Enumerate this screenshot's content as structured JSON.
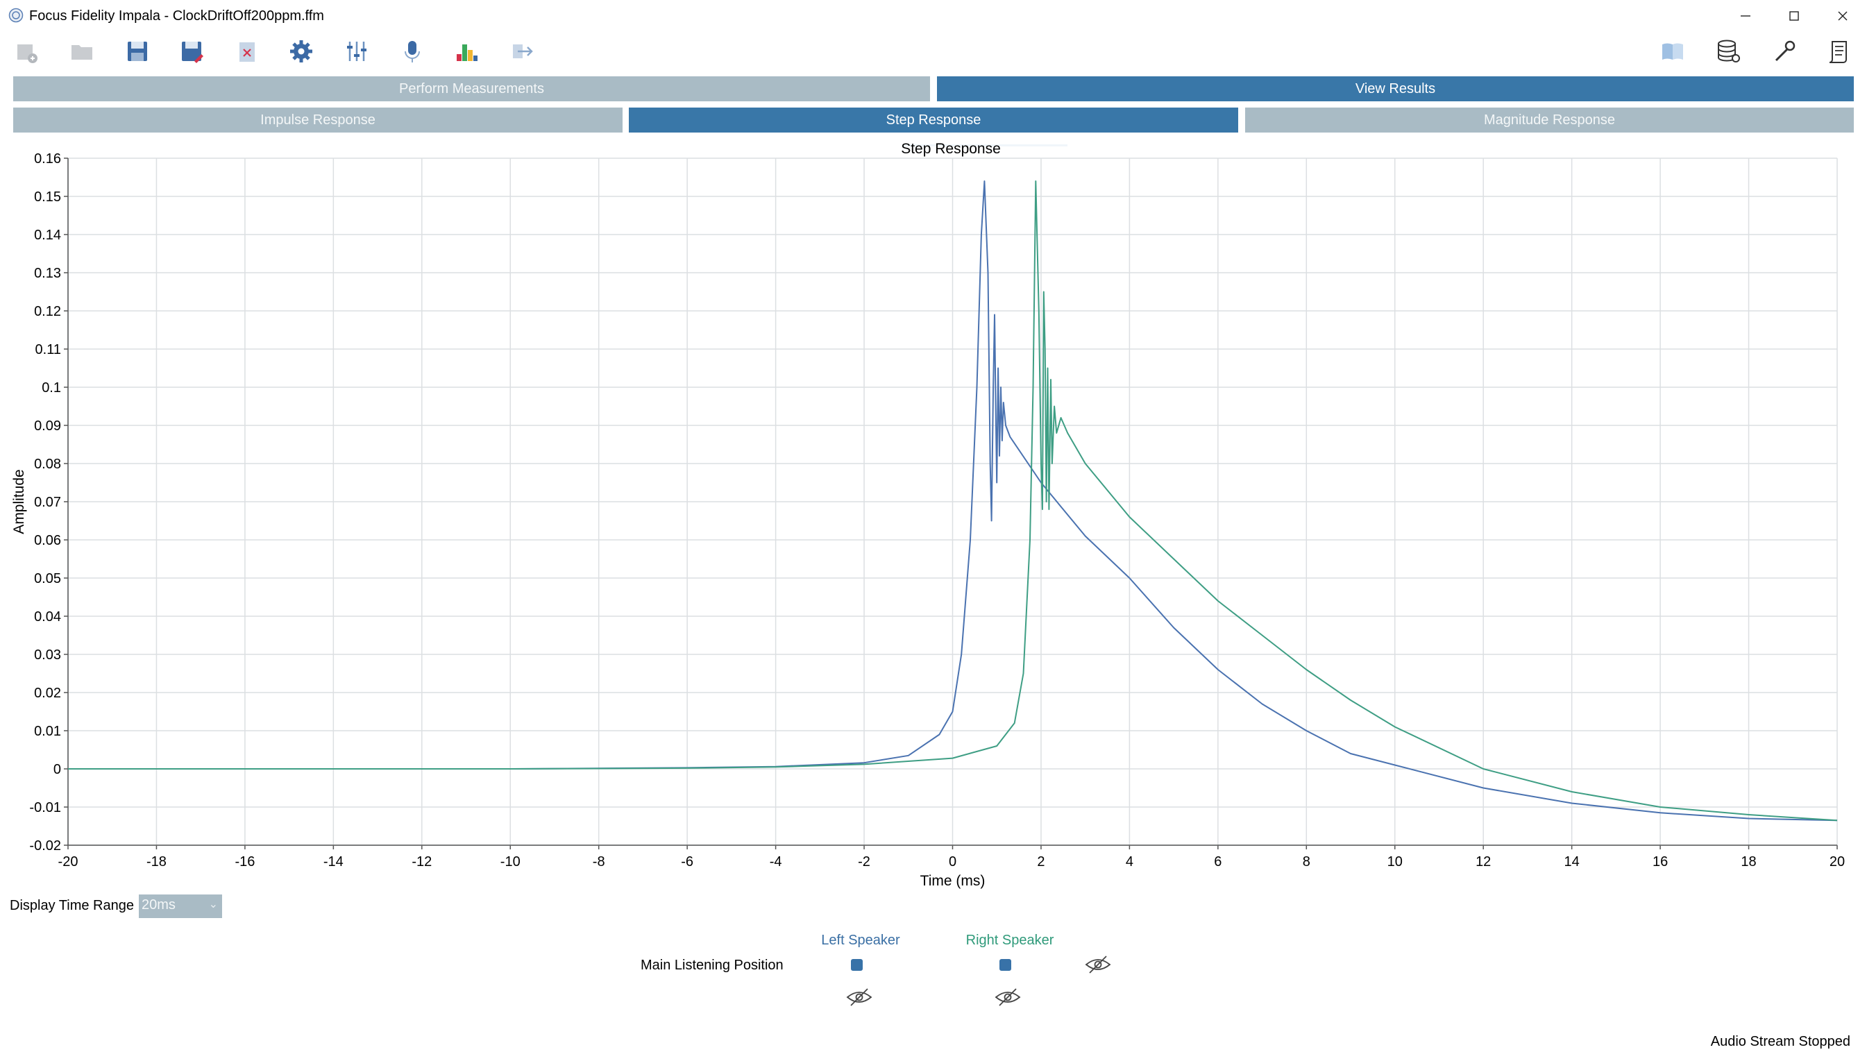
{
  "window": {
    "title": "Focus Fidelity Impala - ClockDriftOff200ppm.ffm",
    "minimize": "—",
    "maximize": "☐",
    "close": "✕"
  },
  "toolbar": {
    "icons": [
      "new-measurement-icon",
      "open-folder-icon",
      "save-icon",
      "save-as-icon",
      "close-file-icon",
      "settings-icon",
      "sliders-icon",
      "microphone-icon",
      "chart-bars-icon",
      "export-icon",
      "manual-icon",
      "database-icon",
      "tools-icon",
      "report-icon"
    ]
  },
  "tabs": {
    "main": [
      {
        "label": "Perform Measurements",
        "active": false
      },
      {
        "label": "View Results",
        "active": true
      }
    ],
    "results": [
      {
        "label": "Impulse Response",
        "active": false
      },
      {
        "label": "Step Response",
        "active": true
      },
      {
        "label": "Magnitude Response",
        "active": false
      }
    ]
  },
  "controls": {
    "display_time_range_label": "Display Time Range",
    "display_time_range_value": "20ms"
  },
  "legend": {
    "left_speaker": "Left Speaker",
    "right_speaker": "Right Speaker",
    "position": "Main Listening Position"
  },
  "status": "Audio Stream Stopped",
  "chart_data": {
    "type": "line",
    "title": "Step Response",
    "xlabel": "Time (ms)",
    "ylabel": "Amplitude",
    "xlim": [
      -20,
      20
    ],
    "ylim": [
      -0.02,
      0.16
    ],
    "x_ticks": [
      "-20",
      "-18",
      "-16",
      "-14",
      "-12",
      "-10",
      "-8",
      "-6",
      "-4",
      "-2",
      "0",
      "2",
      "4",
      "6",
      "8",
      "10",
      "12",
      "14",
      "16",
      "18",
      "20"
    ],
    "y_ticks": [
      "0.16",
      "0.15",
      "0.14",
      "0.13",
      "0.12",
      "0.11",
      "0.1",
      "0.09",
      "0.08",
      "0.07",
      "0.06",
      "0.05",
      "0.04",
      "0.03",
      "0.02",
      "0.01",
      "0",
      "-0.01",
      "-0.02"
    ],
    "grid": true,
    "series": [
      {
        "name": "Left Speaker",
        "color": "#4a72b0",
        "points": [
          [
            -20,
            0
          ],
          [
            -10,
            0
          ],
          [
            -6,
            0.0003
          ],
          [
            -4,
            0.0006
          ],
          [
            -2,
            0.0016
          ],
          [
            -1,
            0.0035
          ],
          [
            -0.3,
            0.009
          ],
          [
            0,
            0.015
          ],
          [
            0.2,
            0.03
          ],
          [
            0.4,
            0.06
          ],
          [
            0.55,
            0.1
          ],
          [
            0.65,
            0.14
          ],
          [
            0.72,
            0.154
          ],
          [
            0.8,
            0.13
          ],
          [
            0.85,
            0.08
          ],
          [
            0.88,
            0.065
          ],
          [
            0.92,
            0.1
          ],
          [
            0.95,
            0.119
          ],
          [
            0.98,
            0.09
          ],
          [
            1.0,
            0.075
          ],
          [
            1.03,
            0.105
          ],
          [
            1.06,
            0.082
          ],
          [
            1.09,
            0.1
          ],
          [
            1.12,
            0.086
          ],
          [
            1.15,
            0.096
          ],
          [
            1.2,
            0.09
          ],
          [
            1.3,
            0.087
          ],
          [
            2,
            0.075
          ],
          [
            3,
            0.061
          ],
          [
            4,
            0.05
          ],
          [
            5,
            0.037
          ],
          [
            6,
            0.026
          ],
          [
            7,
            0.017
          ],
          [
            8,
            0.01
          ],
          [
            9,
            0.004
          ],
          [
            10,
            0.001
          ],
          [
            12,
            -0.005
          ],
          [
            14,
            -0.009
          ],
          [
            16,
            -0.0115
          ],
          [
            18,
            -0.013
          ],
          [
            20,
            -0.0135
          ]
        ]
      },
      {
        "name": "Right Speaker",
        "color": "#3e9e84",
        "points": [
          [
            -20,
            0
          ],
          [
            -10,
            0
          ],
          [
            -6,
            0.0002
          ],
          [
            -4,
            0.0005
          ],
          [
            -2,
            0.0012
          ],
          [
            0,
            0.0028
          ],
          [
            1,
            0.006
          ],
          [
            1.4,
            0.012
          ],
          [
            1.6,
            0.025
          ],
          [
            1.75,
            0.06
          ],
          [
            1.82,
            0.1
          ],
          [
            1.88,
            0.154
          ],
          [
            1.95,
            0.12
          ],
          [
            2.0,
            0.08
          ],
          [
            2.03,
            0.068
          ],
          [
            2.06,
            0.125
          ],
          [
            2.09,
            0.11
          ],
          [
            2.12,
            0.07
          ],
          [
            2.15,
            0.105
          ],
          [
            2.18,
            0.068
          ],
          [
            2.22,
            0.102
          ],
          [
            2.25,
            0.08
          ],
          [
            2.3,
            0.095
          ],
          [
            2.35,
            0.088
          ],
          [
            2.45,
            0.092
          ],
          [
            2.6,
            0.088
          ],
          [
            3,
            0.08
          ],
          [
            4,
            0.066
          ],
          [
            5,
            0.055
          ],
          [
            6,
            0.044
          ],
          [
            7,
            0.035
          ],
          [
            8,
            0.026
          ],
          [
            9,
            0.018
          ],
          [
            10,
            0.011
          ],
          [
            12,
            0.0
          ],
          [
            14,
            -0.006
          ],
          [
            16,
            -0.01
          ],
          [
            18,
            -0.012
          ],
          [
            20,
            -0.0135
          ]
        ]
      }
    ]
  }
}
